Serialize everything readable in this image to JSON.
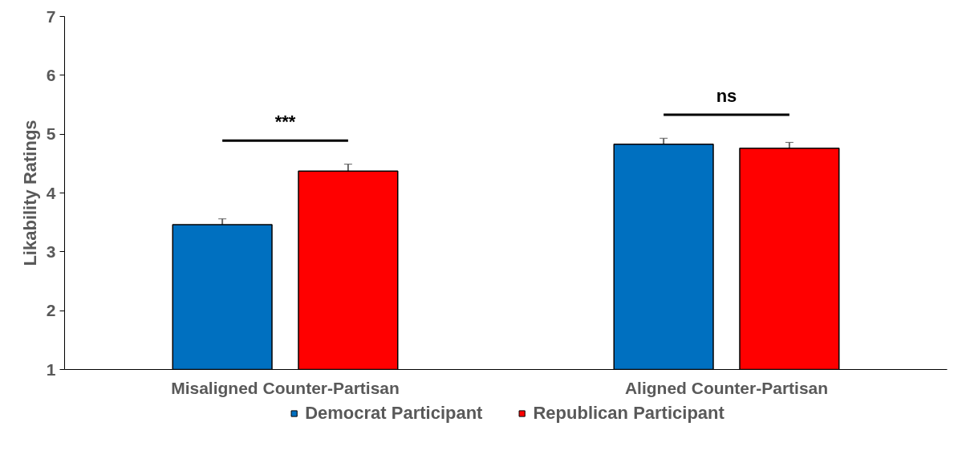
{
  "chart_data": {
    "type": "bar",
    "ylabel": "Likability Ratings",
    "categories": [
      "Misaligned Counter-Partisan",
      "Aligned Counter-Partisan"
    ],
    "series": [
      {
        "name": "Democrat Participant",
        "color": "#0070c0",
        "values": [
          3.46,
          4.83
        ],
        "errors": [
          0.1,
          0.1
        ]
      },
      {
        "name": "Republican Participant",
        "color": "#ff0000",
        "values": [
          4.37,
          4.76
        ],
        "errors": [
          0.12,
          0.1
        ]
      }
    ],
    "ylim": [
      1,
      7
    ],
    "yticks": [
      1,
      2,
      3,
      4,
      5,
      6,
      7
    ],
    "grid": false,
    "legend": "bottom",
    "annotations": [
      "***",
      "ns"
    ]
  }
}
